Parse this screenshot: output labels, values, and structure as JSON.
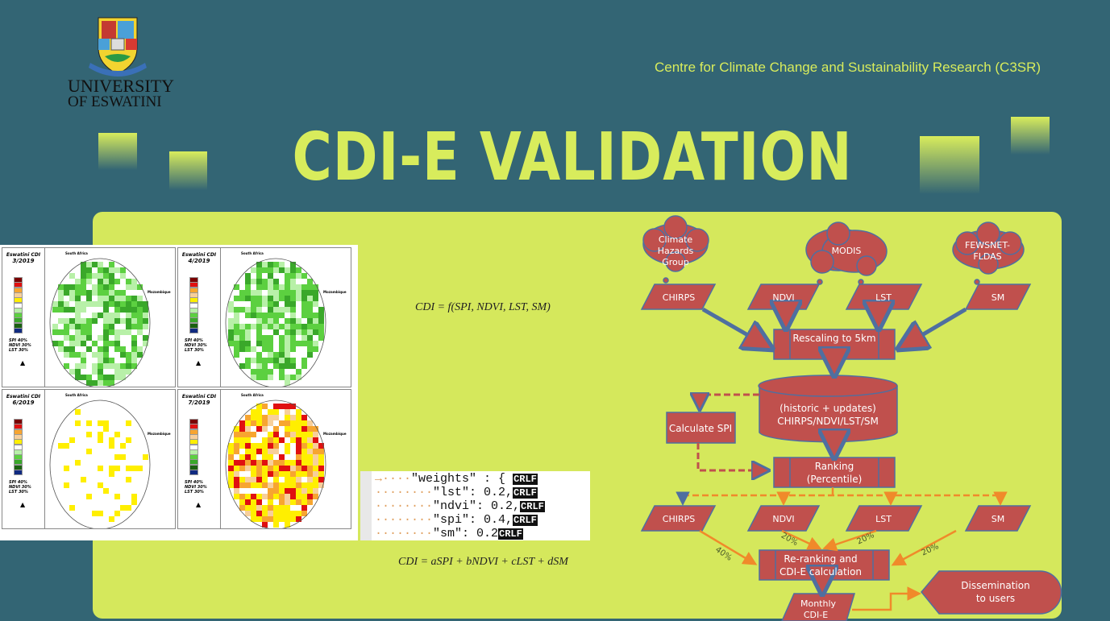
{
  "header": {
    "logo_text": [
      "UNIVERSITY",
      "OF ESWATINI"
    ],
    "centre": "Centre for Climate Change and Sustainability Research (C3SR)",
    "title": "CDI-E VALIDATION"
  },
  "colors": {
    "background": "#336574",
    "accent": "#d8ec5c",
    "shape_fill": "#c0504d",
    "shape_stroke": "#4f6fa0",
    "arrow_orange": "#f08a2a"
  },
  "maps": {
    "panels": [
      {
        "title": "Eswatini CDI",
        "date": "3/2019"
      },
      {
        "title": "Eswatini CDI",
        "date": "4/2019"
      },
      {
        "title": "Eswatini CDI",
        "date": "6/2019"
      },
      {
        "title": "Eswatini CDI",
        "date": "7/2019"
      }
    ],
    "weights_note": [
      "SPI 40%",
      "NDVI 30%",
      "LST 30%"
    ],
    "labels": {
      "south_africa": "South Africa",
      "mozambique": "Mozambique"
    }
  },
  "equations": {
    "general": "CDI = f(SPI, NDVI, LST, SM)",
    "weighted": "CDI = aSPI + bNDVI + cLST + dSM"
  },
  "code": {
    "lines": [
      {
        "dots": "····",
        "text": "\"weights\" : {"
      },
      {
        "dots": "········",
        "text": "\"lst\": 0.2,"
      },
      {
        "dots": "········",
        "text": "\"ndvi\": 0.2,"
      },
      {
        "dots": "········",
        "text": "\"spi\": 0.4,"
      },
      {
        "dots": "········",
        "text": "\"sm\": 0.2"
      }
    ],
    "crlf": "CRLF"
  },
  "flowchart": {
    "sources": [
      "Climate",
      "Hazards",
      "Group",
      "MODIS",
      "FEWSNET-",
      "FLDAS"
    ],
    "inputs": [
      "CHIRPS",
      "NDVI",
      "LST",
      "SM"
    ],
    "rescaling": "Rescaling to 5km",
    "database": [
      "(historic + updates)",
      "CHIRPS/NDVI/LST/SM"
    ],
    "calc_spi": "Calculate SPI",
    "ranking": [
      "Ranking",
      "(Percentile)"
    ],
    "outputs": [
      "CHIRPS",
      "NDVI",
      "LST",
      "SM"
    ],
    "weights": [
      "40%",
      "20%",
      "20%",
      "20%"
    ],
    "reranking": [
      "Re-ranking and",
      "CDI-E calculation"
    ],
    "monthly": [
      "Monthly",
      "CDI-E"
    ],
    "dissemination": [
      "Dissemination",
      "to users"
    ]
  }
}
